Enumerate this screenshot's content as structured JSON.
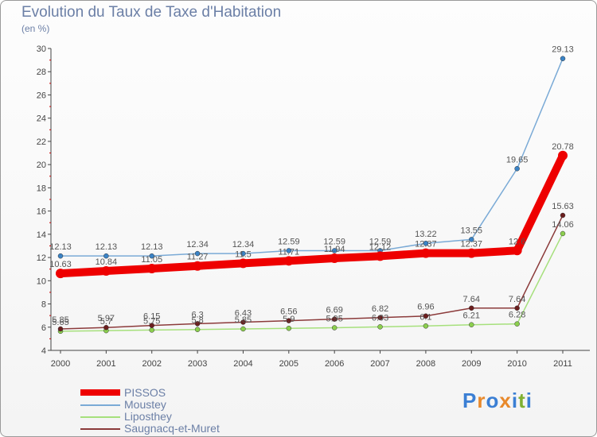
{
  "title": "Evolution du Taux de Taxe d'Habitation",
  "subtitle": "(en %)",
  "logo": {
    "letters": [
      "P",
      "r",
      "o",
      "x",
      "i",
      "t",
      "i"
    ],
    "colors": [
      "#3b7fd4",
      "#e8892b",
      "#3b7fd4",
      "#e8892b",
      "#3b7fd4",
      "#7fb031",
      "#3b7fd4"
    ]
  },
  "chart_data": {
    "type": "line",
    "title": "Evolution du Taux de Taxe d'Habitation",
    "ylabel": "(en %)",
    "xlabel": "",
    "ylim": [
      4,
      30
    ],
    "y_ticks": [
      "4",
      "6",
      "8",
      "10",
      "12",
      "14",
      "16",
      "18",
      "20",
      "22",
      "24",
      "26",
      "28",
      "30"
    ],
    "categories": [
      "2000",
      "2001",
      "2002",
      "2003",
      "2004",
      "2005",
      "2006",
      "2007",
      "2008",
      "2009",
      "2010",
      "2011"
    ],
    "grid": false,
    "legend_position": "bottom-left",
    "series": [
      {
        "name": "PISSOS",
        "color": "#ee0000",
        "marker": "#ee0000",
        "values": [
          10.63,
          10.84,
          11.05,
          11.27,
          11.5,
          11.71,
          11.94,
          12.12,
          12.37,
          12.37,
          12.6,
          20.78
        ],
        "labels": [
          "10.63",
          "10.84",
          "11.05",
          "11.27",
          "11.5",
          "11.71",
          "11.94",
          "12.12",
          "12.37",
          "12.37",
          "12.6",
          "20.78"
        ]
      },
      {
        "name": "Moustey",
        "color": "#7aaad6",
        "marker": "#3a83c6",
        "values": [
          12.13,
          12.13,
          12.13,
          12.34,
          12.34,
          12.59,
          12.59,
          12.59,
          13.22,
          13.55,
          19.65,
          29.13
        ],
        "labels": [
          "12.13",
          "12.13",
          "12.13",
          "12.34",
          "12.34",
          "12.59",
          "12.59",
          "12.59",
          "13.22",
          "13.55",
          "19.65",
          "29.13"
        ]
      },
      {
        "name": "Liposthey",
        "color": "#a6e07c",
        "marker": "#8ccf4e",
        "values": [
          5.65,
          5.7,
          5.75,
          5.8,
          5.85,
          5.9,
          5.95,
          6.03,
          6.1,
          6.21,
          6.28,
          14.06
        ],
        "labels": [
          "5.65",
          "5.7",
          "5.75",
          "5.8",
          "5.85",
          "5.9",
          "5.95",
          "6.03",
          "6.1",
          "6.21",
          "6.28",
          "14.06"
        ]
      },
      {
        "name": "Saugnacq-et-Muret",
        "color": "#8b3a3a",
        "marker": "#6b1e1e",
        "values": [
          5.85,
          5.97,
          6.15,
          6.3,
          6.43,
          6.56,
          6.69,
          6.82,
          6.96,
          7.64,
          7.64,
          15.63
        ],
        "labels": [
          "5.85",
          "5.97",
          "6.15",
          "6.3",
          "6.43",
          "6.56",
          "6.69",
          "6.82",
          "6.96",
          "7.64",
          "7.64",
          "15.63"
        ]
      }
    ]
  }
}
